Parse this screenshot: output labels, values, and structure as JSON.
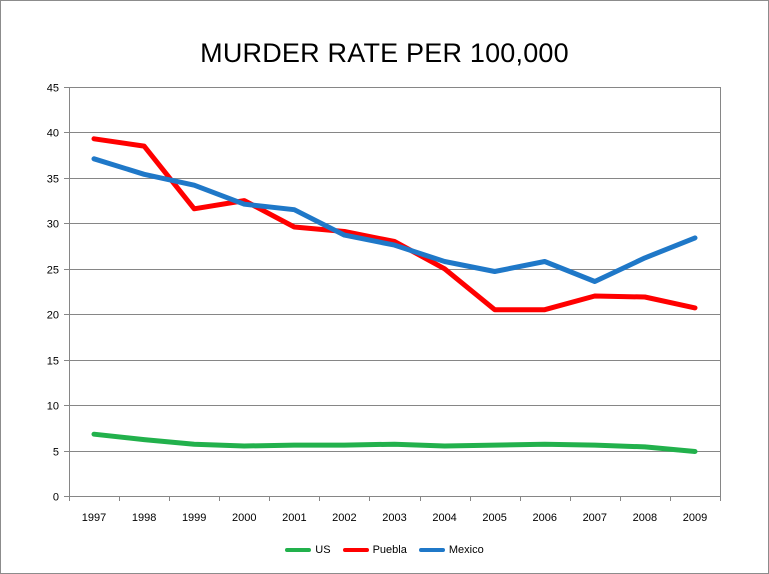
{
  "chart_data": {
    "type": "line",
    "title": "MURDER RATE PER 100,000",
    "x": [
      "1997",
      "1998",
      "1999",
      "2000",
      "2001",
      "2002",
      "2003",
      "2004",
      "2005",
      "2006",
      "2007",
      "2008",
      "2009"
    ],
    "ylim": [
      0,
      45
    ],
    "yticks": [
      0,
      5,
      10,
      15,
      20,
      25,
      30,
      35,
      40,
      45
    ],
    "ytick_labels": [
      "0",
      "5",
      "10",
      "15",
      "20",
      "25",
      "30",
      "35",
      "40",
      "45"
    ],
    "grid": true,
    "legend_position": "bottom",
    "series": [
      {
        "name": "US",
        "color": "#22b14c",
        "values": [
          6.8,
          6.2,
          5.7,
          5.5,
          5.6,
          5.6,
          5.7,
          5.5,
          5.6,
          5.7,
          5.6,
          5.4,
          4.9
        ]
      },
      {
        "name": "Puebla",
        "color": "#ff0000",
        "values": [
          39.3,
          38.5,
          31.6,
          32.5,
          29.6,
          29.1,
          28.0,
          25.0,
          20.5,
          20.5,
          22.0,
          21.9,
          20.7
        ]
      },
      {
        "name": "Mexico",
        "color": "#1f78c8",
        "values": [
          37.1,
          35.4,
          34.2,
          32.1,
          31.5,
          28.7,
          27.6,
          25.8,
          24.7,
          25.8,
          23.6,
          26.2,
          28.4
        ]
      }
    ]
  }
}
